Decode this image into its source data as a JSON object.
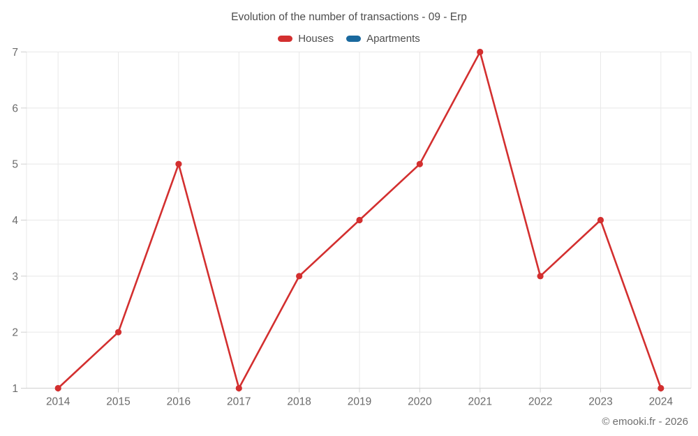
{
  "title": "Evolution of the number of transactions - 09 - Erp",
  "legend": {
    "items": [
      {
        "label": "Houses",
        "color": "#d32f2f"
      },
      {
        "label": "Apartments",
        "color": "#1a699e"
      }
    ]
  },
  "footer": {
    "credit": "© emooki.fr - 2026"
  },
  "chart_data": {
    "type": "line",
    "title": "Evolution of the number of transactions - 09 - Erp",
    "categories": [
      "2014",
      "2015",
      "2016",
      "2017",
      "2018",
      "2019",
      "2020",
      "2021",
      "2022",
      "2023",
      "2024"
    ],
    "series": [
      {
        "name": "Houses",
        "color": "#d32f2f",
        "values": [
          1,
          2,
          5,
          1,
          3,
          4,
          5,
          7,
          3,
          4,
          1
        ]
      },
      {
        "name": "Apartments",
        "color": "#1a699e",
        "values": []
      }
    ],
    "xlabel": "",
    "ylabel": "",
    "ylim": [
      1,
      7
    ],
    "yticks": [
      1,
      2,
      3,
      4,
      5,
      6,
      7
    ],
    "grid": true,
    "legend_position": "top",
    "marker": "circle"
  },
  "style": {
    "grid_color": "#e8e8e8",
    "axis_color": "#d6d6d6",
    "tick_color": "#d0d0d0",
    "label_color": "#6b6b6b"
  }
}
